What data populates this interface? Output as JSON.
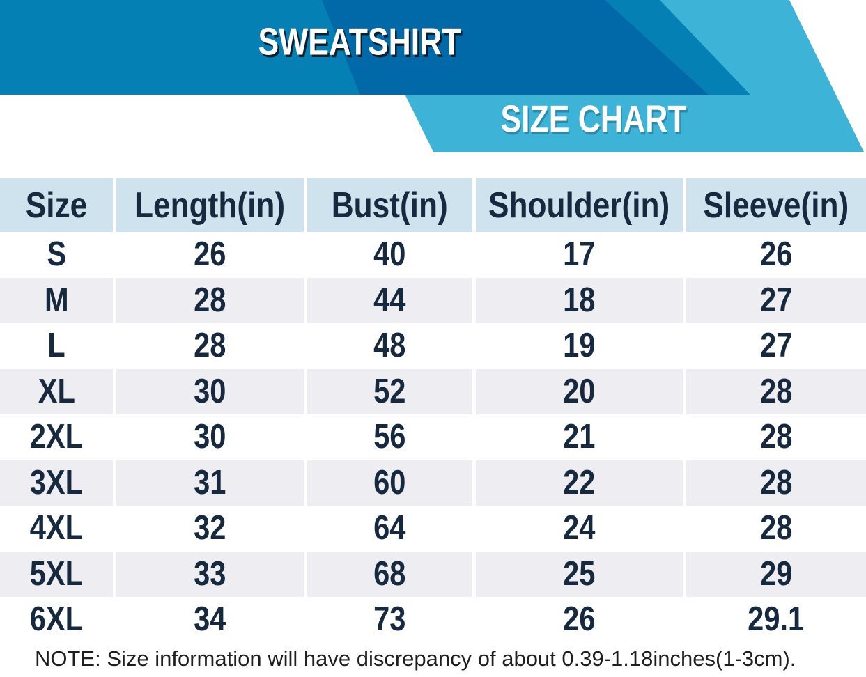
{
  "header": {
    "product_title": "SWEATSHIRT",
    "chart_title": "SIZE CHART"
  },
  "colors": {
    "banner_blue": "#0580b5",
    "banner_dark_blue": "#0269a8",
    "ribbon_cyan": "#3eb3d8",
    "table_header_bg": "#cfe3ef",
    "row_alt_bg": "#ededf2",
    "row_bg": "#ffffff",
    "text_navy": "#16293e"
  },
  "table": {
    "columns": [
      "Size",
      "Length(in)",
      "Bust(in)",
      "Shoulder(in)",
      "Sleeve(in)"
    ],
    "rows": [
      {
        "size": "S",
        "values": [
          "26",
          "40",
          "17",
          "26"
        ]
      },
      {
        "size": "M",
        "values": [
          "28",
          "44",
          "18",
          "27"
        ]
      },
      {
        "size": "L",
        "values": [
          "28",
          "48",
          "19",
          "27"
        ]
      },
      {
        "size": "XL",
        "values": [
          "30",
          "52",
          "20",
          "28"
        ]
      },
      {
        "size": "2XL",
        "values": [
          "30",
          "56",
          "21",
          "28"
        ]
      },
      {
        "size": "3XL",
        "values": [
          "31",
          "60",
          "22",
          "28"
        ]
      },
      {
        "size": "4XL",
        "values": [
          "32",
          "64",
          "24",
          "28"
        ]
      },
      {
        "size": "5XL",
        "values": [
          "33",
          "68",
          "25",
          "29"
        ]
      },
      {
        "size": "6XL",
        "values": [
          "34",
          "73",
          "26",
          "29.1"
        ]
      }
    ]
  },
  "note": "NOTE: Size information will have discrepancy of about 0.39-1.18inches(1-3cm).",
  "chart_data": {
    "type": "table",
    "title": "SWEATSHIRT SIZE CHART",
    "units": "inches",
    "columns": [
      "Size",
      "Length(in)",
      "Bust(in)",
      "Shoulder(in)",
      "Sleeve(in)"
    ],
    "rows": [
      [
        "S",
        26,
        40,
        17,
        26
      ],
      [
        "M",
        28,
        44,
        18,
        27
      ],
      [
        "L",
        28,
        48,
        19,
        27
      ],
      [
        "XL",
        30,
        52,
        20,
        28
      ],
      [
        "2XL",
        30,
        56,
        21,
        28
      ],
      [
        "3XL",
        31,
        60,
        22,
        28
      ],
      [
        "4XL",
        32,
        64,
        24,
        28
      ],
      [
        "5XL",
        33,
        68,
        25,
        29
      ],
      [
        "6XL",
        34,
        73,
        26,
        29.1
      ]
    ],
    "footnote": "NOTE: Size information will have discrepancy of about 0.39-1.18inches(1-3cm)."
  }
}
